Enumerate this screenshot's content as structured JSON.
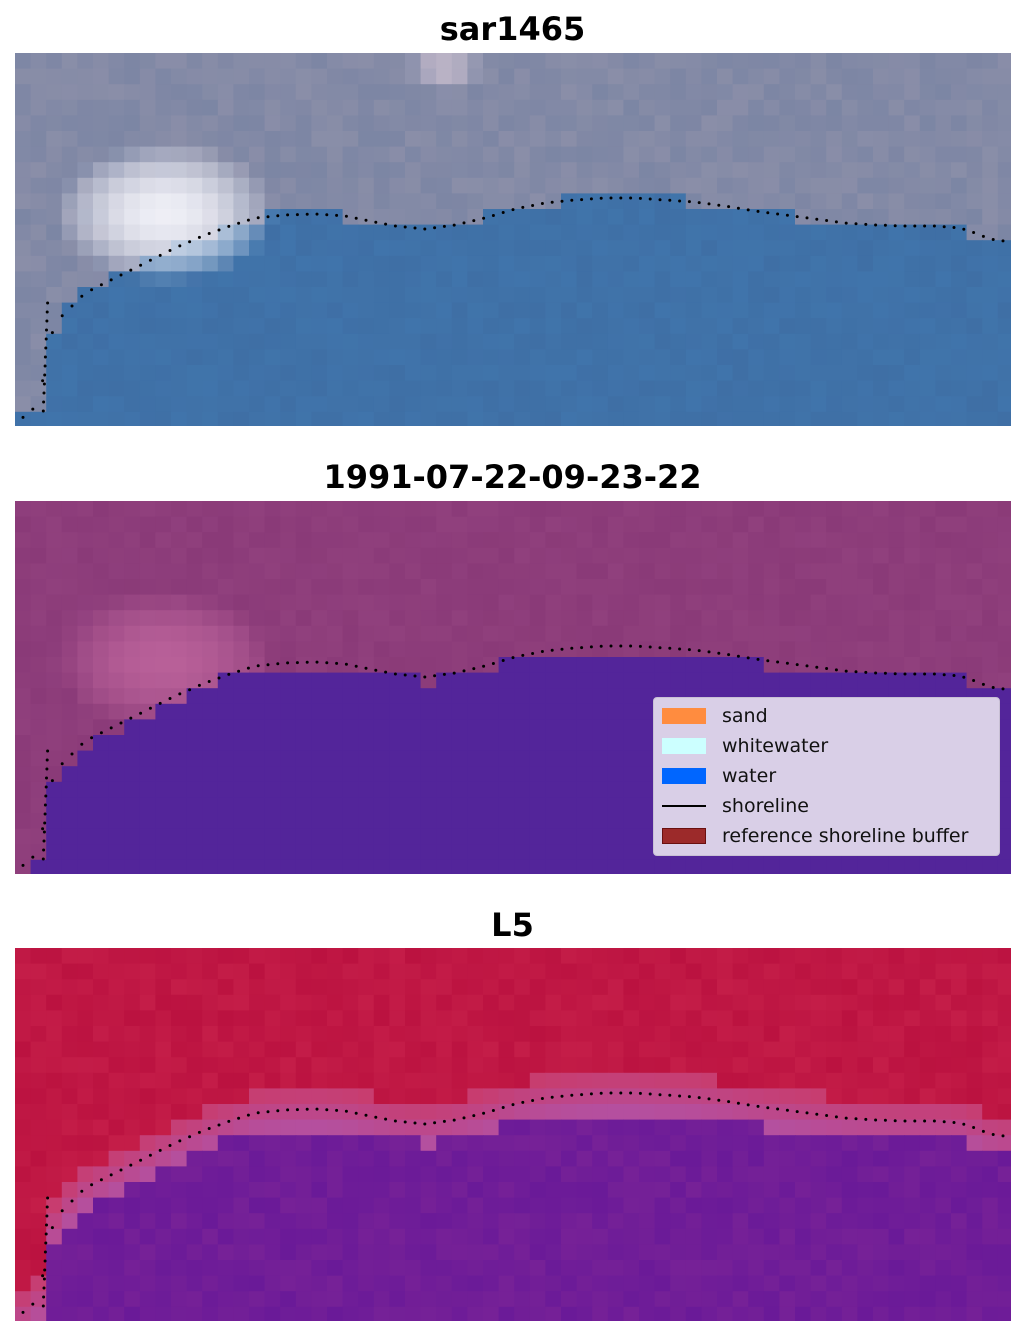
{
  "panels": [
    {
      "title": "sar1465"
    },
    {
      "title": "1991-07-22-09-23-22"
    },
    {
      "title": "L5"
    }
  ],
  "legend": {
    "items": [
      {
        "label": "sand",
        "color": "#ff8c3f",
        "kind": "patch"
      },
      {
        "label": "whitewater",
        "color": "#ccffff",
        "kind": "patch"
      },
      {
        "label": "water",
        "color": "#0066ff",
        "kind": "patch"
      },
      {
        "label": "shoreline",
        "color": "#000000",
        "kind": "line"
      },
      {
        "label": "reference shoreline buffer",
        "color": "#9c2a2a",
        "kind": "patch"
      }
    ]
  },
  "colors": {
    "rgb_land": "#8a8ea8",
    "rgb_water": "#3f6fa5",
    "rgb_whitewater": "#f4f4fa",
    "class_land": "#8a3a78",
    "class_water": "#53259a",
    "index_land": "#bb1240",
    "index_water": "#6a1a98",
    "shoreline_dots": "#000000"
  }
}
